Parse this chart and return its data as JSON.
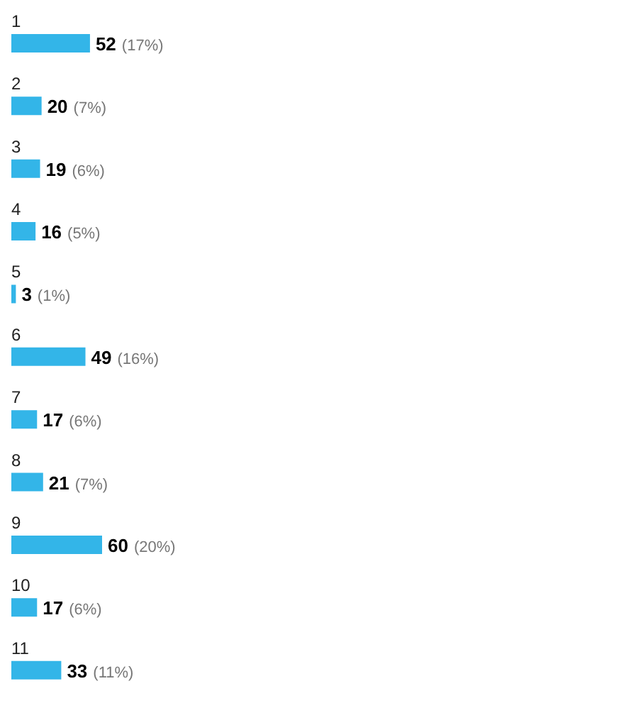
{
  "chart_data": {
    "type": "bar",
    "orientation": "horizontal",
    "categories": [
      "1",
      "2",
      "3",
      "4",
      "5",
      "6",
      "7",
      "8",
      "9",
      "10",
      "11"
    ],
    "values": [
      52,
      20,
      19,
      16,
      3,
      49,
      17,
      21,
      60,
      17,
      33
    ],
    "color": "#33b5e8",
    "value_labels": [
      "52 (17%)",
      "20 (7%)",
      "19 (6%)",
      "16 (5%)",
      "3 (1%)",
      "49 (16%)",
      "17 (6%)",
      "21 (7%)",
      "60 (20%)",
      "17 (6%)",
      "33 (11%)"
    ]
  }
}
